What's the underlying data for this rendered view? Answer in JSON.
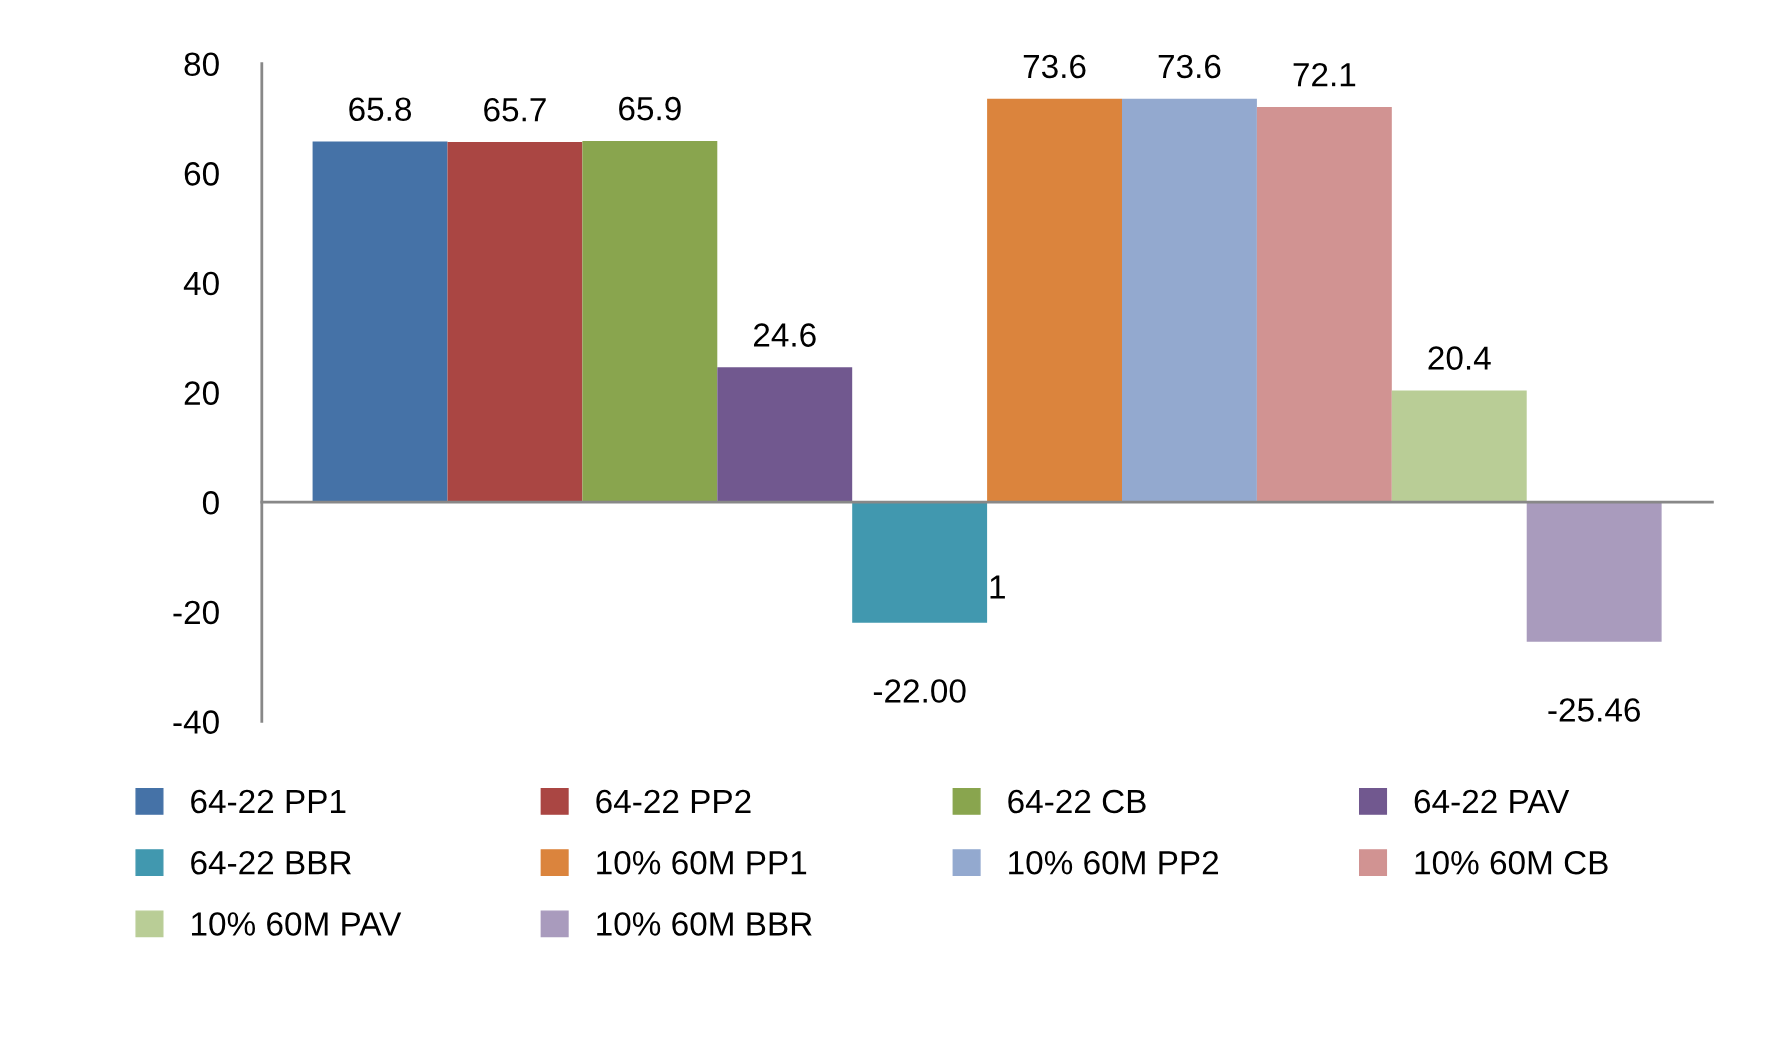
{
  "chart_data": {
    "type": "bar",
    "categories": [
      null
    ],
    "series": [
      {
        "name": "64-22 PP1",
        "color": "#4572a7",
        "values": [
          65.8
        ],
        "value_labels": [
          "65.8"
        ]
      },
      {
        "name": "64-22 PP2",
        "color": "#aa4643",
        "values": [
          65.7
        ],
        "value_labels": [
          "65.7"
        ]
      },
      {
        "name": "64-22 CB",
        "color": "#89a54e",
        "values": [
          65.9
        ],
        "value_labels": [
          "65.9"
        ]
      },
      {
        "name": "64-22 PAV",
        "color": "#71588f",
        "values": [
          24.6
        ],
        "value_labels": [
          "24.6"
        ]
      },
      {
        "name": "64-22 BBR",
        "color": "#4198af",
        "values": [
          -22.0
        ],
        "value_labels": [
          "-22.00"
        ]
      },
      {
        "name": "10% 60M PP1",
        "color": "#db843d",
        "values": [
          73.6
        ],
        "value_labels": [
          "73.6"
        ]
      },
      {
        "name": "10% 60M PP2",
        "color": "#93a9cf",
        "values": [
          73.6
        ],
        "value_labels": [
          "73.6"
        ]
      },
      {
        "name": "10% 60M CB",
        "color": "#d19392",
        "values": [
          72.1
        ],
        "value_labels": [
          "72.1"
        ]
      },
      {
        "name": "10% 60M PAV",
        "color": "#b9cd96",
        "values": [
          20.4
        ],
        "value_labels": [
          "20.4"
        ]
      },
      {
        "name": "10% 60M BBR",
        "color": "#a99bbd",
        "values": [
          -25.46
        ],
        "value_labels": [
          "-25.46"
        ]
      }
    ],
    "ylim": [
      -40,
      80
    ],
    "yticks": [
      -40,
      -20,
      0,
      20,
      40,
      60,
      80
    ],
    "annotations": [
      "1"
    ],
    "legend": "bottom",
    "tick_labels": "y"
  }
}
